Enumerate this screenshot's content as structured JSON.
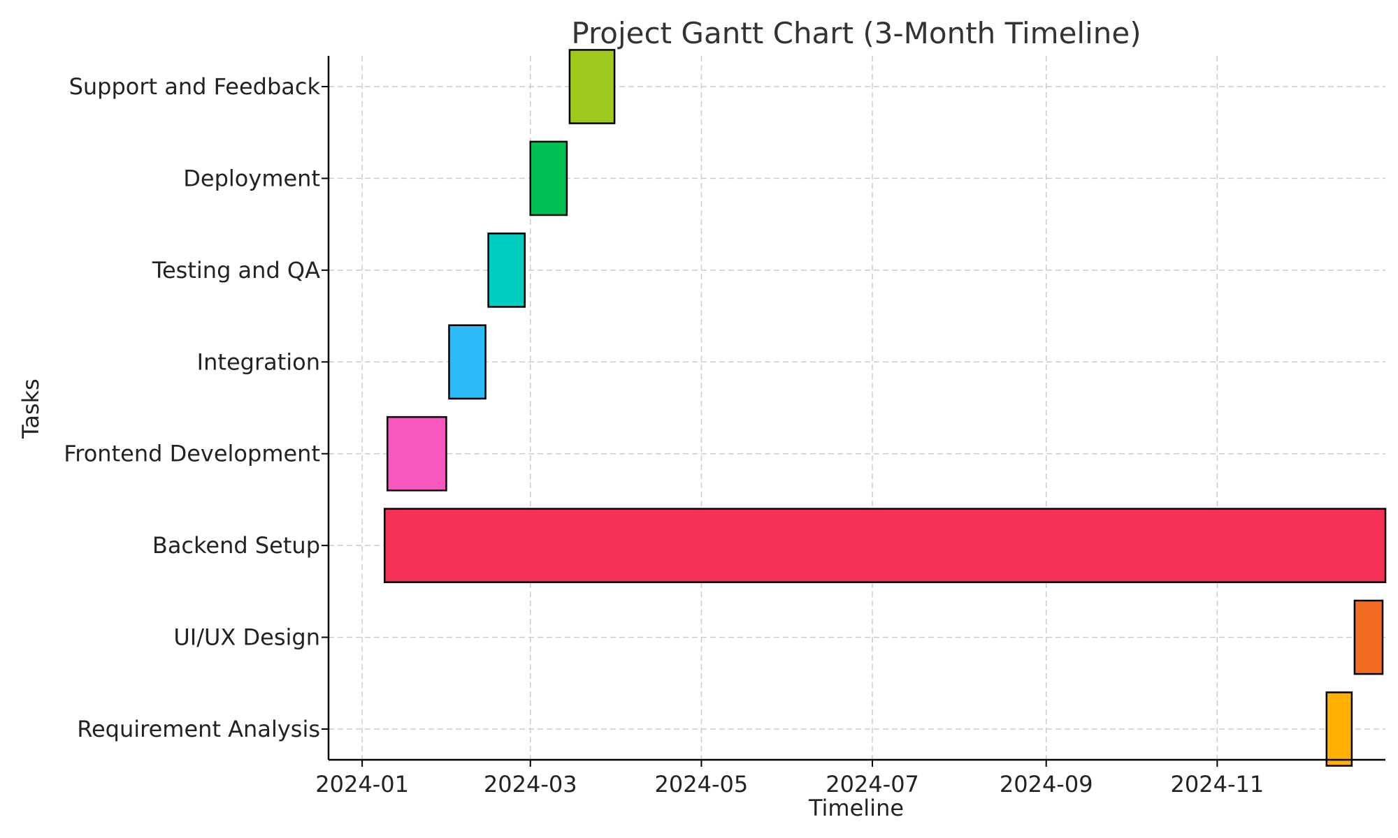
{
  "chart_data": {
    "type": "bar",
    "orientation": "horizontal",
    "title": "Project Gantt Chart (3-Month Timeline)",
    "xlabel": "Timeline",
    "ylabel": "Tasks",
    "x_ticks": [
      "2024-01",
      "2024-03",
      "2024-05",
      "2024-07",
      "2024-09",
      "2024-11"
    ],
    "xlim": [
      "2023-12-20",
      "2024-12-31"
    ],
    "grid": true,
    "categories": [
      "Requirement Analysis",
      "UI/UX Design",
      "Backend Setup",
      "Frontend Development",
      "Integration",
      "Testing and QA",
      "Deployment",
      "Support and Feedback"
    ],
    "tasks": [
      {
        "name": "Requirement Analysis",
        "start": "2024-12-10",
        "end": "2024-12-19",
        "color": "#FFB000"
      },
      {
        "name": "UI/UX Design",
        "start": "2024-12-20",
        "end": "2024-12-30",
        "color": "#F26B21"
      },
      {
        "name": "Backend Setup",
        "start": "2024-01-09",
        "end": "2024-12-31",
        "color": "#F53155"
      },
      {
        "name": "Frontend Development",
        "start": "2024-01-10",
        "end": "2024-01-31",
        "color": "#F958BF"
      },
      {
        "name": "Integration",
        "start": "2024-02-01",
        "end": "2024-02-14",
        "color": "#2BBBF6"
      },
      {
        "name": "Testing and QA",
        "start": "2024-02-15",
        "end": "2024-02-28",
        "color": "#00CCBF"
      },
      {
        "name": "Deployment",
        "start": "2024-03-01",
        "end": "2024-03-14",
        "color": "#00BF55"
      },
      {
        "name": "Support and Feedback",
        "start": "2024-03-15",
        "end": "2024-03-31",
        "color": "#9DCA1D"
      }
    ]
  }
}
